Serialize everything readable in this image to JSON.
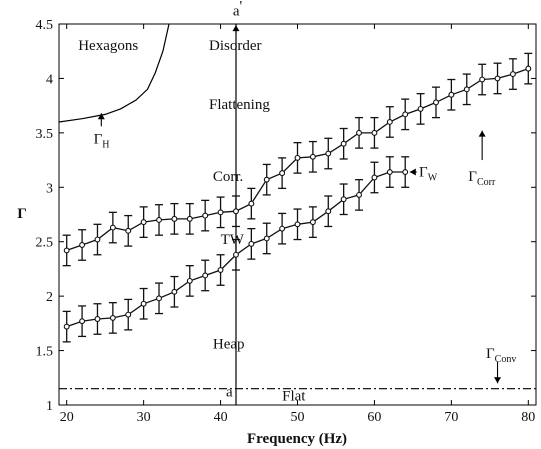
{
  "chart_data": {
    "type": "line",
    "title": "",
    "xlabel": "Frequency (Hz)",
    "ylabel": "Γ",
    "xlim": [
      19,
      81
    ],
    "ylim": [
      1,
      4.5
    ],
    "grid": false,
    "x_ticks": [
      "20",
      "30",
      "40",
      "50",
      "60",
      "70",
      "80"
    ],
    "y_ticks": [
      "1",
      "1.5",
      "2",
      "2.5",
      "3",
      "3.5",
      "4",
      "4.5"
    ],
    "series": [
      {
        "key": "upper",
        "marker": "circle",
        "color": "#111111",
        "x": [
          20,
          22,
          24,
          26,
          28,
          30,
          32,
          34,
          36,
          38,
          40,
          42,
          44,
          46,
          48,
          50,
          52,
          54,
          56,
          58,
          60,
          62,
          64,
          66,
          68,
          70,
          72,
          74,
          76,
          78,
          80
        ],
        "y": [
          2.42,
          2.47,
          2.52,
          2.63,
          2.6,
          2.68,
          2.7,
          2.71,
          2.71,
          2.74,
          2.77,
          2.78,
          2.85,
          3.07,
          3.13,
          3.27,
          3.28,
          3.31,
          3.4,
          3.5,
          3.5,
          3.6,
          3.67,
          3.72,
          3.78,
          3.85,
          3.9,
          3.99,
          4.0,
          4.04,
          4.09
        ],
        "err": [
          0.14,
          0.14,
          0.14,
          0.14,
          0.14,
          0.14,
          0.14,
          0.14,
          0.14,
          0.14,
          0.14,
          0.14,
          0.14,
          0.14,
          0.14,
          0.14,
          0.14,
          0.14,
          0.14,
          0.14,
          0.14,
          0.14,
          0.14,
          0.14,
          0.14,
          0.14,
          0.14,
          0.14,
          0.14,
          0.14,
          0.14
        ]
      },
      {
        "key": "lower",
        "marker": "circle",
        "color": "#111111",
        "x": [
          20,
          22,
          24,
          26,
          28,
          30,
          32,
          34,
          36,
          38,
          40,
          42,
          44,
          46,
          48,
          50,
          52,
          54,
          56,
          58,
          60,
          62,
          64
        ],
        "y": [
          1.72,
          1.77,
          1.79,
          1.8,
          1.83,
          1.93,
          1.98,
          2.04,
          2.14,
          2.19,
          2.24,
          2.38,
          2.48,
          2.53,
          2.62,
          2.66,
          2.68,
          2.78,
          2.89,
          2.93,
          3.09,
          3.14,
          3.14
        ],
        "err": [
          0.14,
          0.14,
          0.14,
          0.14,
          0.14,
          0.14,
          0.14,
          0.14,
          0.14,
          0.14,
          0.14,
          0.14,
          0.14,
          0.14,
          0.14,
          0.14,
          0.14,
          0.14,
          0.14,
          0.14,
          0.14,
          0.14,
          0.14
        ]
      }
    ],
    "curves": [
      {
        "key": "hexagon_boundary",
        "style": "solid",
        "x": [
          19,
          22,
          25,
          27,
          29,
          30.5,
          31.5,
          32.5,
          33.3
        ],
        "y": [
          3.6,
          3.63,
          3.67,
          3.72,
          3.8,
          3.9,
          4.05,
          4.25,
          4.5
        ]
      },
      {
        "key": "flat_threshold",
        "style": "dash-dot",
        "x": [
          19,
          81
        ],
        "y": [
          1.15,
          1.15
        ]
      },
      {
        "key": "vertical_line",
        "style": "solid",
        "x": [
          42,
          42
        ],
        "y": [
          1,
          4.5
        ]
      }
    ],
    "region_labels": [
      {
        "text": "Hexagons",
        "x": 21.5,
        "y": 4.26
      },
      {
        "text": "Disorder",
        "x": 38.5,
        "y": 4.26
      },
      {
        "text": "Flattening",
        "x": 38.5,
        "y": 3.72
      },
      {
        "text": "Corr.",
        "x": 39,
        "y": 3.06
      },
      {
        "text": "TW",
        "x": 40,
        "y": 2.48
      },
      {
        "text": "Heap",
        "x": 39,
        "y": 1.52
      },
      {
        "text": "Flat",
        "x": 48,
        "y": 1.04
      }
    ],
    "annotations": [
      {
        "main": "a",
        "sub": "",
        "prime": "'",
        "x": 41.6,
        "y": 4.58
      },
      {
        "main": "a",
        "sub": "",
        "prime": "",
        "x": 40.7,
        "y": 1.08
      },
      {
        "main": "Γ",
        "sub": "H",
        "prime": "",
        "x": 23.5,
        "y": 3.4
      },
      {
        "main": "Γ",
        "sub": "W",
        "prime": "",
        "x": 65.8,
        "y": 3.1
      },
      {
        "main": "Γ",
        "sub": "Corr",
        "prime": "",
        "x": 72.2,
        "y": 3.06
      },
      {
        "main": "Γ",
        "sub": "Conv",
        "prime": "",
        "x": 74.5,
        "y": 1.43
      }
    ],
    "arrows": [
      {
        "key": "arrow-gamma-h",
        "x1": 24.5,
        "y1": 3.56,
        "x2": 24.5,
        "y2": 3.68
      },
      {
        "key": "arrow-gamma-w",
        "x1": 65.5,
        "y1": 3.14,
        "x2": 64.6,
        "y2": 3.14
      },
      {
        "key": "arrow-gamma-corr",
        "x1": 74,
        "y1": 3.25,
        "x2": 74,
        "y2": 3.52
      },
      {
        "key": "arrow-gamma-conv",
        "x1": 76,
        "y1": 1.4,
        "x2": 76,
        "y2": 1.2
      },
      {
        "key": "arrow-a-prime",
        "x1": 42,
        "y1": 4.41,
        "x2": 42,
        "y2": 4.49
      }
    ]
  }
}
